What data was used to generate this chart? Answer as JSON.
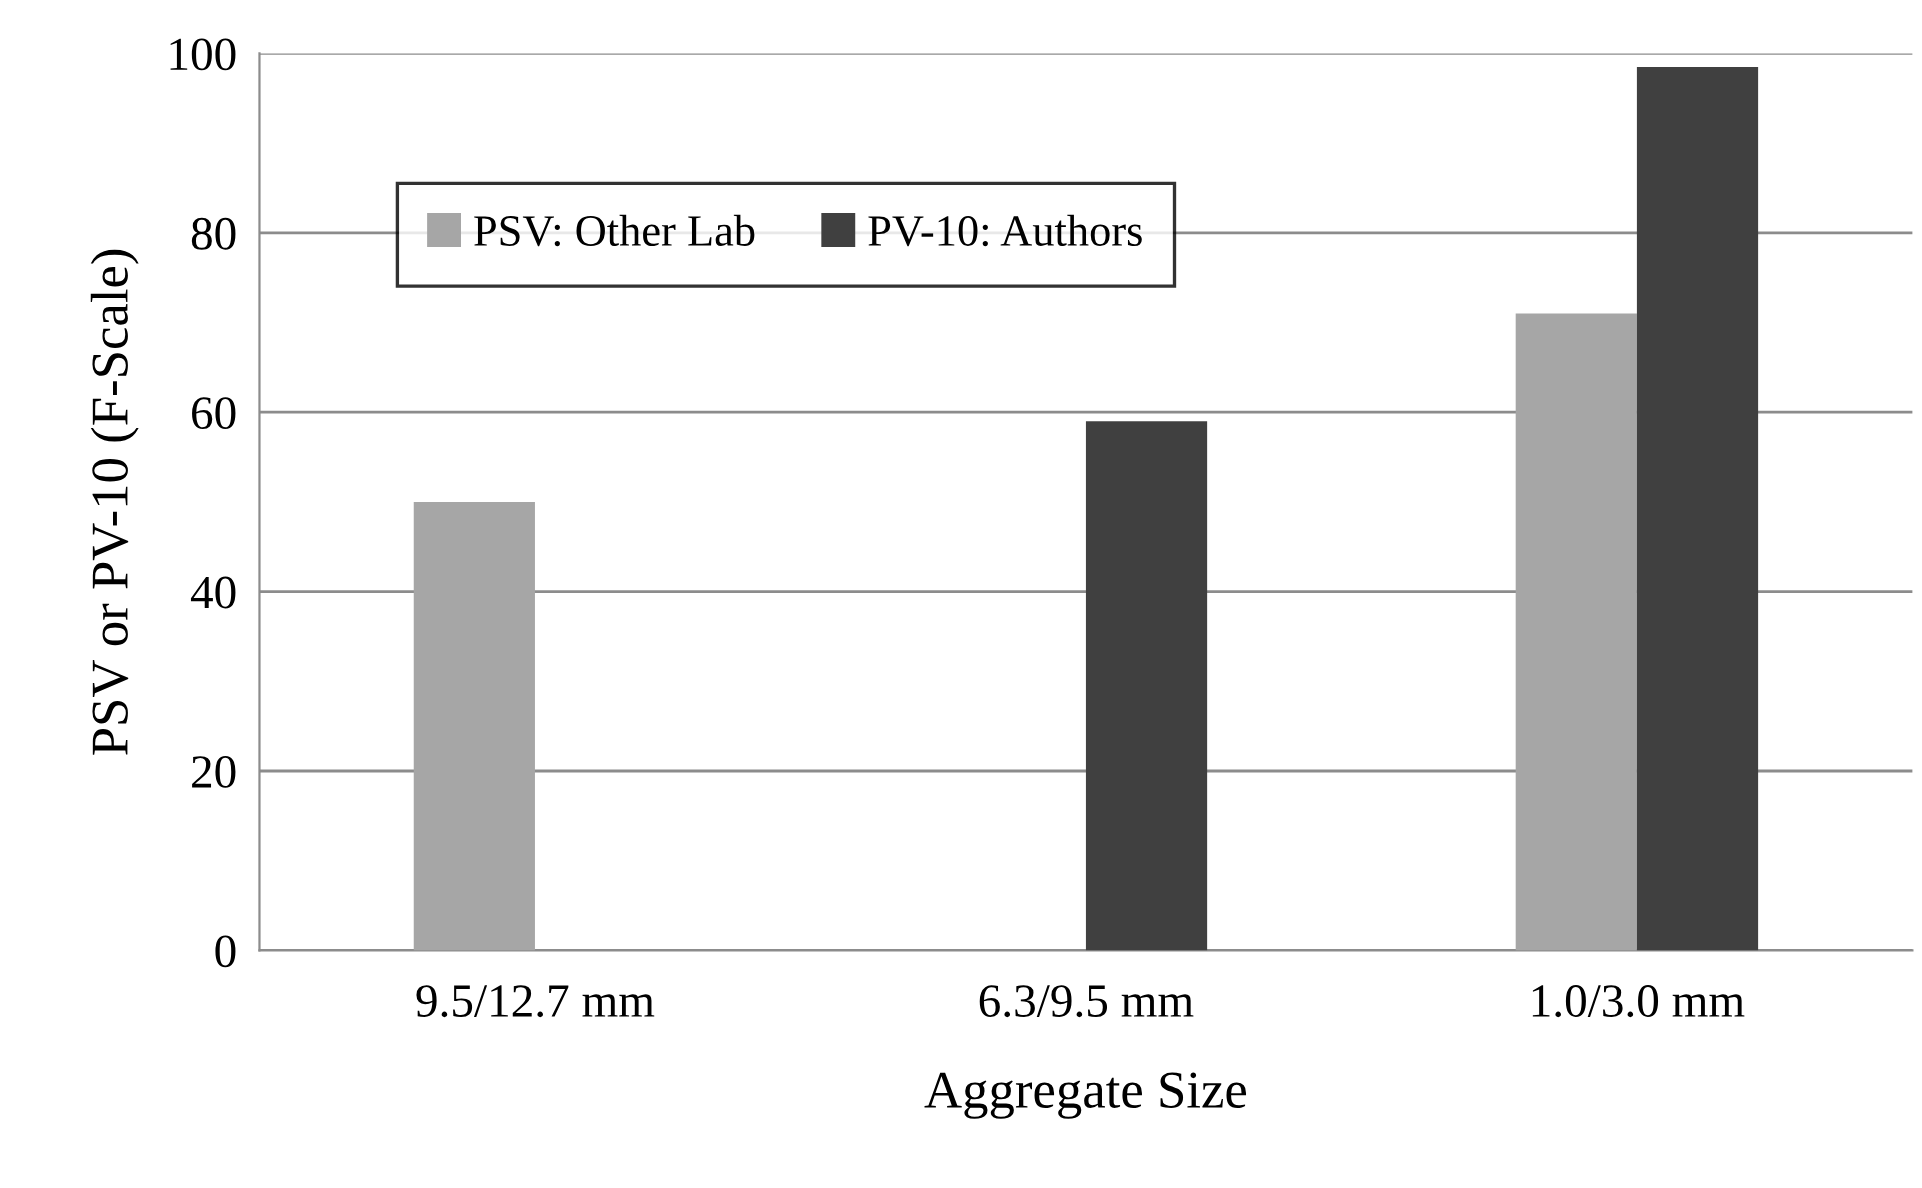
{
  "chart_data": {
    "type": "bar",
    "xlabel": "Aggregate Size",
    "ylabel": "PSV or PV-10 (F-Scale)",
    "categories": [
      "9.5/12.7 mm",
      "6.3/9.5 mm",
      "1.0/3.0 mm"
    ],
    "series": [
      {
        "name": "PSV: Other Lab",
        "color": "#a6a6a6",
        "values": [
          50,
          null,
          71
        ]
      },
      {
        "name": "PV-10: Authors",
        "color": "#404040",
        "values": [
          null,
          59,
          98.5
        ]
      }
    ],
    "ylim": [
      0,
      100
    ],
    "yticks": [
      0,
      20,
      40,
      60,
      80,
      100
    ],
    "grid": "y",
    "legend": "top left"
  }
}
